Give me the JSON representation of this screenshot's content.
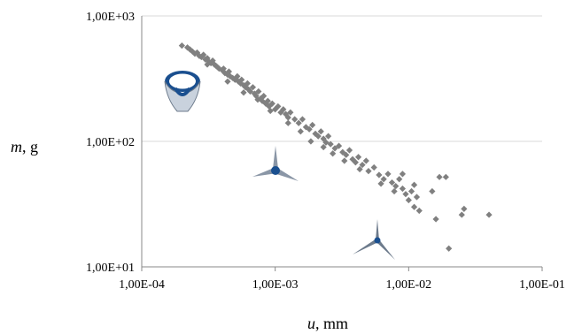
{
  "chart_data": {
    "type": "scatter",
    "x_scale": "log",
    "y_scale": "log",
    "xlim": [
      0.0001,
      0.1
    ],
    "ylim": [
      10,
      1000
    ],
    "x_tick_labels": [
      "1,00E-04",
      "1,00E-03",
      "1,00E-02",
      "1,00E-01"
    ],
    "y_tick_labels": [
      "1,00E+01",
      "1,00E+02",
      "1,00E+03"
    ],
    "xlabel_var": "u",
    "xlabel_unit": ", mm",
    "ylabel_var": "m",
    "ylabel_unit": ", g",
    "grid": "horizontal",
    "legend": "none",
    "marker": "diamond",
    "marker_color": "#808080",
    "points": [
      [
        0.0002,
        580
      ],
      [
        0.00022,
        560
      ],
      [
        0.00023,
        540
      ],
      [
        0.00024,
        520
      ],
      [
        0.00025,
        500
      ],
      [
        0.00026,
        510
      ],
      [
        0.00027,
        480
      ],
      [
        0.00028,
        470
      ],
      [
        0.00029,
        490
      ],
      [
        0.0003,
        450
      ],
      [
        0.00031,
        460
      ],
      [
        0.00032,
        430
      ],
      [
        0.00033,
        420
      ],
      [
        0.00034,
        440
      ],
      [
        0.00035,
        410
      ],
      [
        0.00036,
        400
      ],
      [
        0.00037,
        390
      ],
      [
        0.00038,
        380
      ],
      [
        0.0004,
        370
      ],
      [
        0.00041,
        380
      ],
      [
        0.00042,
        350
      ],
      [
        0.00044,
        340
      ],
      [
        0.00045,
        360
      ],
      [
        0.00046,
        330
      ],
      [
        0.00048,
        320
      ],
      [
        0.0005,
        310
      ],
      [
        0.00052,
        330
      ],
      [
        0.00053,
        300
      ],
      [
        0.00055,
        290
      ],
      [
        0.00056,
        310
      ],
      [
        0.00058,
        280
      ],
      [
        0.0006,
        270
      ],
      [
        0.00062,
        290
      ],
      [
        0.00063,
        260
      ],
      [
        0.00065,
        250
      ],
      [
        0.00068,
        270
      ],
      [
        0.0007,
        240
      ],
      [
        0.00072,
        230
      ],
      [
        0.00075,
        250
      ],
      [
        0.00078,
        220
      ],
      [
        0.0008,
        210
      ],
      [
        0.00082,
        230
      ],
      [
        0.00085,
        200
      ],
      [
        0.00088,
        210
      ],
      [
        0.0009,
        190
      ],
      [
        0.00095,
        200
      ],
      [
        0.001,
        180
      ],
      [
        0.00105,
        190
      ],
      [
        0.0011,
        170
      ],
      [
        0.00115,
        180
      ],
      [
        0.0012,
        165
      ],
      [
        0.00125,
        155
      ],
      [
        0.0013,
        170
      ],
      [
        0.0014,
        150
      ],
      [
        0.0015,
        140
      ],
      [
        0.0016,
        150
      ],
      [
        0.0017,
        130
      ],
      [
        0.0018,
        125
      ],
      [
        0.0019,
        135
      ],
      [
        0.002,
        115
      ],
      [
        0.0021,
        110
      ],
      [
        0.0022,
        120
      ],
      [
        0.0023,
        105
      ],
      [
        0.0024,
        98
      ],
      [
        0.0025,
        110
      ],
      [
        0.0026,
        95
      ],
      [
        0.0028,
        88
      ],
      [
        0.003,
        92
      ],
      [
        0.0032,
        82
      ],
      [
        0.0034,
        78
      ],
      [
        0.0036,
        85
      ],
      [
        0.0038,
        72
      ],
      [
        0.004,
        68
      ],
      [
        0.0042,
        75
      ],
      [
        0.0045,
        65
      ],
      [
        0.0048,
        70
      ],
      [
        0.005,
        58
      ],
      [
        0.0055,
        62
      ],
      [
        0.006,
        54
      ],
      [
        0.0065,
        50
      ],
      [
        0.007,
        55
      ],
      [
        0.0075,
        47
      ],
      [
        0.008,
        44
      ],
      [
        0.0085,
        50
      ],
      [
        0.009,
        42
      ],
      [
        0.0095,
        38
      ],
      [
        0.01,
        34
      ],
      [
        0.0105,
        40
      ],
      [
        0.011,
        30
      ],
      [
        0.0115,
        36
      ],
      [
        0.012,
        28
      ],
      [
        0.00031,
        410
      ],
      [
        0.00044,
        300
      ],
      [
        0.00058,
        245
      ],
      [
        0.00074,
        215
      ],
      [
        0.00092,
        175
      ],
      [
        0.00125,
        140
      ],
      [
        0.00155,
        120
      ],
      [
        0.00185,
        100
      ],
      [
        0.0023,
        90
      ],
      [
        0.0027,
        80
      ],
      [
        0.0033,
        70
      ],
      [
        0.0043,
        60
      ],
      [
        0.0062,
        46
      ],
      [
        0.0078,
        40
      ],
      [
        0.009,
        55
      ],
      [
        0.011,
        45
      ],
      [
        0.015,
        40
      ],
      [
        0.016,
        24
      ],
      [
        0.017,
        52
      ],
      [
        0.019,
        52
      ],
      [
        0.025,
        26
      ],
      [
        0.026,
        29
      ],
      [
        0.04,
        26
      ],
      [
        0.02,
        14
      ]
    ]
  }
}
